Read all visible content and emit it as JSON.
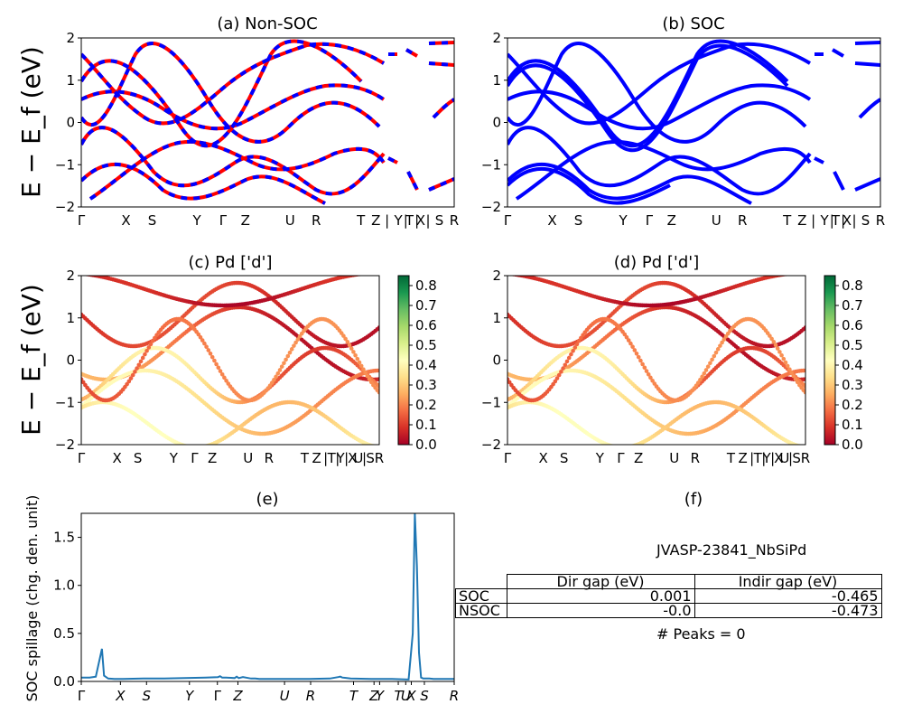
{
  "chart_data": [
    {
      "panel": "a",
      "type": "line",
      "title": "(a) Non-SOC",
      "ylabel": "E − E_f (eV)",
      "ylim": [
        -2,
        2
      ],
      "yticks": [
        "2",
        "1",
        "0",
        "−1",
        "−2"
      ],
      "xtick_labels": [
        "Γ",
        "X",
        "S",
        "Y",
        "Γ",
        "Z",
        "U",
        "R",
        "T",
        "Z",
        "|",
        "Y",
        "|",
        "T",
        "|",
        "X",
        "|",
        "S",
        "R"
      ],
      "series": [
        {
          "name": "",
          "color": "#ff0000",
          "style": "solid"
        },
        {
          "name": "",
          "color": "#0000ff",
          "style": "dashed"
        }
      ]
    },
    {
      "panel": "b",
      "type": "line",
      "title": "(b) SOC",
      "ylim": [
        -2,
        2
      ],
      "yticks": [
        "2",
        "1",
        "0",
        "−1",
        "−2"
      ],
      "xtick_labels": [
        "Γ",
        "X",
        "S",
        "Y",
        "Γ",
        "Z",
        "U",
        "R",
        "T",
        "Z",
        "|",
        "Y",
        "|",
        "T",
        "|",
        "X",
        "|",
        "S",
        "R"
      ],
      "series": [
        {
          "name": "",
          "color": "#0000ff",
          "style": "solid"
        }
      ]
    },
    {
      "panel": "c",
      "type": "scatter",
      "title": "(c)  Pd ['d']",
      "ylabel": "E − E_f (eV)",
      "ylim": [
        -2,
        2
      ],
      "yticks": [
        "2",
        "1",
        "0",
        "−1",
        "−2"
      ],
      "xtick_labels": [
        "Γ",
        "X",
        "S",
        "Y",
        "Γ",
        "Z",
        "U",
        "R",
        "T",
        "Z",
        "|",
        "T",
        "|",
        "Y",
        "|",
        "X",
        "U",
        "|",
        "S",
        "R"
      ],
      "colorbar": {
        "min": 0.0,
        "max": 0.85,
        "ticks": [
          "0.8",
          "0.7",
          "0.6",
          "0.5",
          "0.4",
          "0.3",
          "0.2",
          "0.1",
          "0.0"
        ],
        "cmap": "RdYlGn"
      }
    },
    {
      "panel": "d",
      "type": "scatter",
      "title": "(d) Pd ['d']",
      "ylim": [
        -2,
        2
      ],
      "yticks": [
        "2",
        "1",
        "0",
        "−1",
        "−2"
      ],
      "xtick_labels": [
        "Γ",
        "X",
        "S",
        "Y",
        "Γ",
        "Z",
        "U",
        "R",
        "T",
        "Z",
        "|",
        "T",
        "|",
        "Y",
        "|",
        "X",
        "U",
        "|",
        "S",
        "R"
      ],
      "colorbar": {
        "min": 0.0,
        "max": 0.85,
        "ticks": [
          "0.8",
          "0.7",
          "0.6",
          "0.5",
          "0.4",
          "0.3",
          "0.2",
          "0.1",
          "0.0"
        ],
        "cmap": "RdYlGn"
      }
    },
    {
      "panel": "e",
      "type": "line",
      "title": "(e)",
      "ylabel": "SOC spillage (chg. den. unit)",
      "ylim": [
        0,
        1.75
      ],
      "yticks": [
        "0.0",
        "0.5",
        "1.0",
        "1.5"
      ],
      "xtick_labels": [
        "Γ",
        "X",
        "S",
        "Y",
        "Γ",
        "Z",
        "U",
        "R",
        "T",
        "Z",
        "Y",
        "T",
        "U",
        "X",
        "S",
        "R"
      ],
      "x": [
        0,
        0.2,
        0.35,
        0.5,
        0.55,
        0.65,
        0.8,
        1.0,
        1.5,
        2.0,
        2.5,
        3.0,
        3.3,
        3.35,
        3.4,
        3.5,
        3.7,
        3.75,
        3.8,
        3.9,
        4.1,
        4.2,
        4.3,
        4.5,
        4.7,
        4.8,
        5.0,
        5.5,
        6.0,
        6.2,
        6.25,
        6.3,
        6.5,
        7.0,
        7.5,
        7.9,
        8.0,
        8.05,
        8.1,
        8.15,
        8.2,
        8.25,
        8.3,
        8.4,
        8.5,
        8.7,
        9.0
      ],
      "y": [
        0.04,
        0.04,
        0.05,
        0.34,
        0.06,
        0.03,
        0.025,
        0.025,
        0.03,
        0.03,
        0.035,
        0.04,
        0.045,
        0.055,
        0.04,
        0.04,
        0.035,
        0.05,
        0.035,
        0.045,
        0.03,
        0.03,
        0.025,
        0.025,
        0.025,
        0.025,
        0.025,
        0.025,
        0.03,
        0.045,
        0.05,
        0.04,
        0.03,
        0.025,
        0.025,
        0.02,
        0.5,
        1.75,
        1.2,
        0.3,
        0.04,
        0.03,
        0.03,
        0.03,
        0.025,
        0.025,
        0.025
      ],
      "series": [
        {
          "name": "",
          "color": "#1f77b4"
        }
      ]
    }
  ],
  "info_panel": {
    "title": "(f)",
    "material": "JVASP-23841_NbSiPd",
    "table": {
      "headers": [
        "",
        "Dir gap (eV)",
        "Indir gap (eV)"
      ],
      "rows": [
        [
          "SOC",
          "0.001",
          "-0.465"
        ],
        [
          "NSOC",
          "-0.0",
          "-0.473"
        ]
      ]
    },
    "peaks": "# Peaks = 0"
  }
}
